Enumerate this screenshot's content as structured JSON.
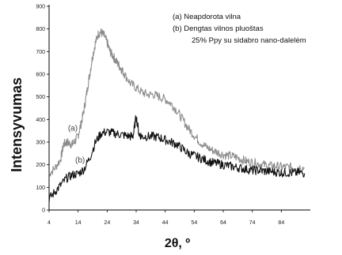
{
  "chart_data": {
    "type": "line",
    "xlabel": "2θ, º",
    "ylabel": "Intensyvumas",
    "xlim": [
      4,
      94
    ],
    "ylim": [
      0,
      900
    ],
    "x_ticks": [
      4,
      14,
      24,
      34,
      44,
      54,
      64,
      74,
      84
    ],
    "y_ticks": [
      0,
      100,
      200,
      300,
      400,
      500,
      600,
      700,
      800,
      900
    ],
    "grid": false,
    "legend": {
      "placement": "top-right",
      "lines": [
        "(a)    Neapdorota vilna",
        "(b)    Dengtas vilnos pluoštas",
        "25% Ppy su sidabro nano-dalelėm"
      ]
    },
    "series": [
      {
        "label": "(a)",
        "color": "#8c8c8c",
        "x": [
          4,
          6,
          8,
          9,
          10,
          11,
          12,
          13,
          14,
          15,
          16,
          17,
          18,
          19,
          20,
          21,
          22,
          23,
          24,
          25,
          26,
          27,
          28,
          29,
          30,
          32,
          34,
          36,
          38,
          40,
          42,
          44,
          46,
          48,
          50,
          52,
          54,
          56,
          58,
          60,
          62,
          64,
          66,
          68,
          70,
          72,
          74,
          76,
          78,
          80,
          82,
          84,
          86,
          88,
          90,
          92
        ],
        "y": [
          160,
          185,
          225,
          290,
          300,
          295,
          290,
          305,
          330,
          380,
          440,
          520,
          600,
          680,
          740,
          780,
          785,
          770,
          740,
          700,
          680,
          660,
          640,
          620,
          600,
          560,
          540,
          520,
          510,
          510,
          500,
          490,
          470,
          440,
          400,
          360,
          330,
          300,
          280,
          265,
          255,
          245,
          240,
          235,
          225,
          215,
          210,
          205,
          200,
          195,
          195,
          190,
          190,
          188,
          190,
          185
        ]
      },
      {
        "label": "(b)",
        "color": "#111111",
        "x": [
          4,
          6,
          8,
          10,
          12,
          14,
          16,
          18,
          20,
          22,
          24,
          26,
          28,
          30,
          32,
          33,
          34,
          35,
          36,
          38,
          40,
          42,
          44,
          46,
          48,
          50,
          52,
          54,
          56,
          58,
          60,
          62,
          64,
          66,
          68,
          70,
          72,
          74,
          76,
          78,
          80,
          82,
          84,
          86,
          88,
          90,
          92
        ],
        "y": [
          50,
          80,
          110,
          140,
          155,
          160,
          180,
          230,
          300,
          340,
          345,
          340,
          335,
          330,
          325,
          330,
          415,
          335,
          325,
          325,
          325,
          320,
          310,
          300,
          290,
          270,
          250,
          240,
          230,
          220,
          210,
          205,
          200,
          195,
          190,
          185,
          180,
          175,
          175,
          172,
          170,
          168,
          165,
          165,
          163,
          165,
          162
        ]
      }
    ],
    "annotations": [
      {
        "text": "(a)",
        "x": 10.5,
        "y": 350
      },
      {
        "text": "(b)",
        "x": 13,
        "y": 210
      }
    ]
  }
}
